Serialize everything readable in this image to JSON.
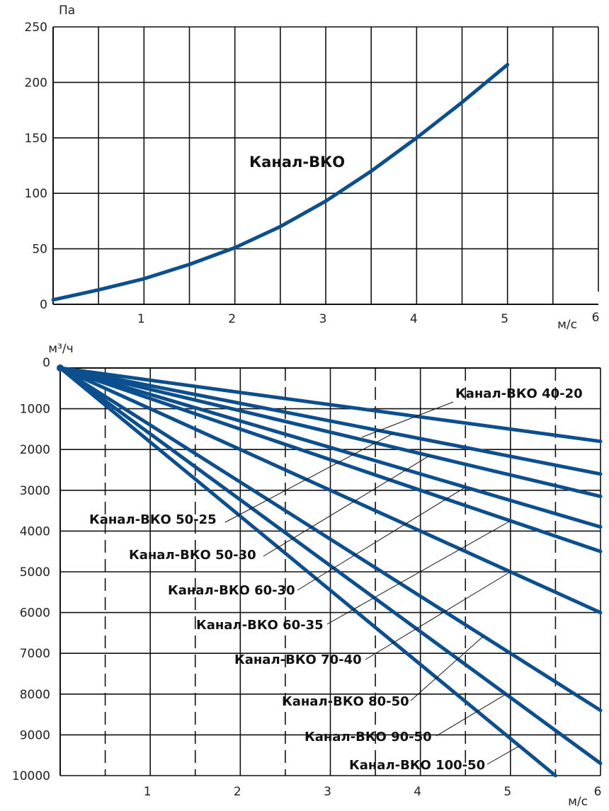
{
  "chart_data": [
    {
      "type": "line",
      "ylabel": "Па",
      "xlabel": "м/с",
      "xlim": [
        0,
        6
      ],
      "ylim": [
        0,
        250
      ],
      "x_ticks": [
        "1",
        "2",
        "3",
        "4",
        "5",
        "6"
      ],
      "y_ticks": [
        "0",
        "50",
        "100",
        "150",
        "200",
        "250"
      ],
      "grid": true,
      "series": [
        {
          "name": "Канал-ВКО",
          "color": "#0b4f8e",
          "x": [
            0,
            0.5,
            1,
            1.5,
            2,
            2.5,
            3,
            3.5,
            4,
            4.5,
            5
          ],
          "y": [
            4,
            13,
            23,
            36,
            51,
            70,
            93,
            120,
            150,
            182,
            216
          ]
        }
      ]
    },
    {
      "type": "line",
      "ylabel": "м³/ч",
      "xlabel": "м/с",
      "xlim": [
        0,
        6
      ],
      "ylim": [
        0,
        10000
      ],
      "y_inverted": true,
      "x_ticks": [
        "1",
        "2",
        "3",
        "4",
        "5",
        "6"
      ],
      "y_ticks": [
        "0",
        "1000",
        "2000",
        "3000",
        "4000",
        "5000",
        "6000",
        "7000",
        "8000",
        "9000",
        "10000"
      ],
      "grid": true,
      "series": [
        {
          "name": "Канал-ВКО 40-20",
          "color": "#0b4f8e",
          "x": [
            0,
            6
          ],
          "y": [
            0,
            1800
          ]
        },
        {
          "name": "Канал-ВКО 50-25",
          "color": "#0b4f8e",
          "x": [
            0,
            6
          ],
          "y": [
            0,
            2600
          ]
        },
        {
          "name": "Канал-ВКО 50-30",
          "color": "#0b4f8e",
          "x": [
            0,
            6
          ],
          "y": [
            0,
            3150
          ]
        },
        {
          "name": "Канал-ВКО 60-30",
          "color": "#0b4f8e",
          "x": [
            0,
            6
          ],
          "y": [
            0,
            3900
          ]
        },
        {
          "name": "Канал-ВКО 60-35",
          "color": "#0b4f8e",
          "x": [
            0,
            6
          ],
          "y": [
            0,
            4500
          ]
        },
        {
          "name": "Канал-ВКО 70-40",
          "color": "#0b4f8e",
          "x": [
            0,
            6
          ],
          "y": [
            0,
            6000
          ]
        },
        {
          "name": "Канал-ВКО 80-50",
          "color": "#0b4f8e",
          "x": [
            0,
            6
          ],
          "y": [
            0,
            8400
          ]
        },
        {
          "name": "Канал-ВКО 90-50",
          "color": "#0b4f8e",
          "x": [
            0,
            6
          ],
          "y": [
            0,
            9700
          ]
        },
        {
          "name": "Канал-ВКО 100-50",
          "color": "#0b4f8e",
          "x": [
            0,
            5.5
          ],
          "y": [
            0,
            10000
          ]
        }
      ]
    }
  ]
}
